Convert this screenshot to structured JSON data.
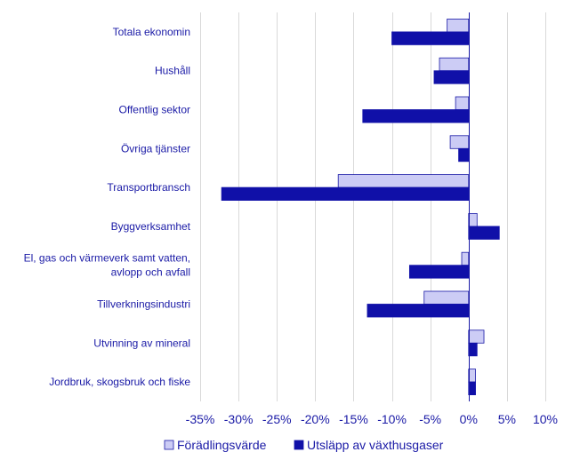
{
  "chart_data": {
    "type": "bar",
    "orientation": "horizontal",
    "title": "",
    "xlabel": "",
    "ylabel": "",
    "categories": [
      "Totala ekonomin",
      "Hushåll",
      "Offentlig sektor",
      "Övriga tjänster",
      "Transportbransch",
      "Byggverksamhet",
      "El, gas och värmeverk samt vatten, avlopp och avfall",
      "Tillverkningsindustri",
      "Utvinning av mineral",
      "Jordbruk, skogsbruk och fiske"
    ],
    "category_lines": [
      [
        "Totala ekonomin"
      ],
      [
        "Hushåll"
      ],
      [
        "Offentlig sektor"
      ],
      [
        "Övriga tjänster"
      ],
      [
        "Transportbransch"
      ],
      [
        "Byggverksamhet"
      ],
      [
        "El, gas och värmeverk samt vatten,",
        "avlopp och avfall"
      ],
      [
        "Tillverkningsindustri"
      ],
      [
        "Utvinning av mineral"
      ],
      [
        "Jordbruk, skogsbruk och fiske"
      ]
    ],
    "series": [
      {
        "name": "Förädlingsvärde",
        "color": "#ccccf5",
        "stroke": "#1a1aa6",
        "values": [
          -2.8,
          -3.8,
          -1.7,
          -2.4,
          -17.0,
          1.1,
          -0.9,
          -5.8,
          2.0,
          0.9
        ]
      },
      {
        "name": "Utsläpp av växthusgaser",
        "color": "#1010a8",
        "stroke": "#1010a8",
        "values": [
          -10.0,
          -4.5,
          -13.8,
          -1.3,
          -32.2,
          4.0,
          -7.7,
          -13.2,
          1.1,
          0.9
        ]
      }
    ],
    "xlim": [
      -35,
      10
    ],
    "xticks": [
      -35,
      -30,
      -25,
      -20,
      -15,
      -10,
      -5,
      0,
      5,
      10
    ],
    "xtick_labels": [
      "-35%",
      "-30%",
      "-25%",
      "-20%",
      "-15%",
      "-10%",
      "-5%",
      "0%",
      "5%",
      "10%"
    ],
    "grid": {
      "x": true,
      "y": false
    },
    "legend": "bottom-center"
  }
}
